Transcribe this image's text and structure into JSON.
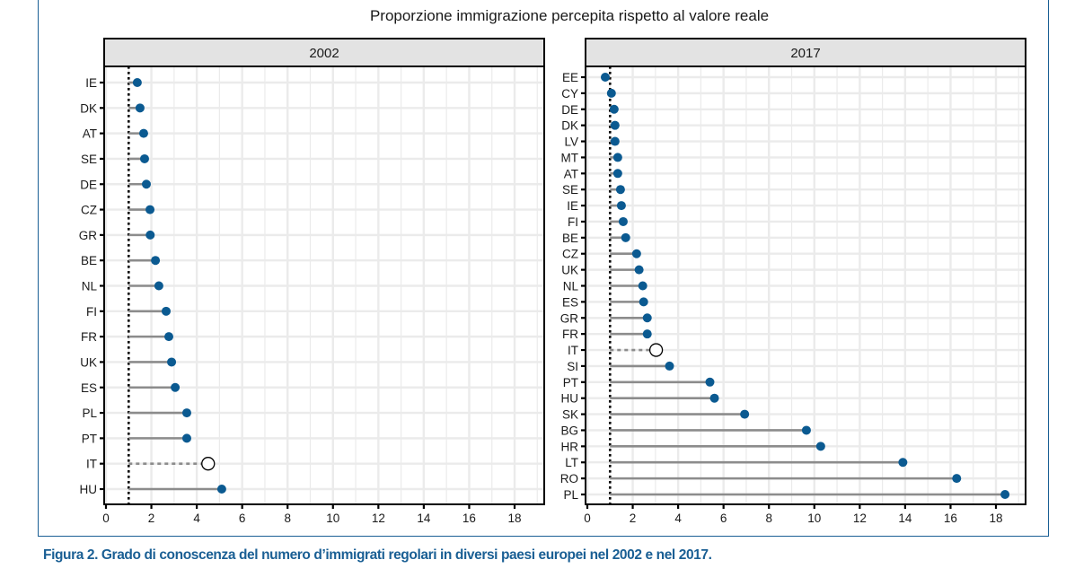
{
  "chart_data": {
    "type": "lollipop",
    "title": "Proporzione immigrazione percepita rispetto al valore reale",
    "reference_value": 1,
    "xlim": [
      0,
      19
    ],
    "x_ticks": [
      "0",
      "2",
      "4",
      "6",
      "8",
      "10",
      "12",
      "14",
      "16",
      "18"
    ],
    "x_tick_values": [
      0,
      2,
      4,
      6,
      8,
      10,
      12,
      14,
      16,
      18
    ],
    "grid": true,
    "highlight_country": "IT",
    "colors": {
      "point": "#0b5a91",
      "segment": "#8c8c8c",
      "highlight_point_fill": "#ffffff",
      "highlight_point_stroke": "#000000",
      "strip_bg": "#e3e3e3",
      "grid": "#ebebeb"
    },
    "panels": [
      {
        "label": "2002",
        "categories": [
          "IE",
          "DK",
          "AT",
          "SE",
          "DE",
          "CZ",
          "GR",
          "BE",
          "NL",
          "FI",
          "FR",
          "UK",
          "ES",
          "PL",
          "PT",
          "IT",
          "HU"
        ],
        "values": [
          1.38,
          1.5,
          1.66,
          1.7,
          1.78,
          1.94,
          1.95,
          2.18,
          2.33,
          2.65,
          2.77,
          2.89,
          3.05,
          3.56,
          3.56,
          4.5,
          5.1
        ]
      },
      {
        "label": "2017",
        "categories": [
          "EE",
          "CY",
          "DE",
          "DK",
          "LV",
          "MT",
          "AT",
          "SE",
          "IE",
          "FI",
          "BE",
          "CZ",
          "UK",
          "NL",
          "ES",
          "GR",
          "FR",
          "IT",
          "SI",
          "PT",
          "HU",
          "SK",
          "BG",
          "HR",
          "LT",
          "RO",
          "PL"
        ],
        "values": [
          0.79,
          1.06,
          1.18,
          1.22,
          1.22,
          1.34,
          1.34,
          1.46,
          1.5,
          1.58,
          1.69,
          2.17,
          2.28,
          2.44,
          2.48,
          2.64,
          2.64,
          3.03,
          3.62,
          5.4,
          5.6,
          6.93,
          9.65,
          10.28,
          13.9,
          16.27,
          18.4
        ]
      }
    ]
  },
  "caption": "Figura 2. Grado di conoscenza del numero d’immigrati regolari in diversi paesi europei nel 2002 e nel 2017."
}
